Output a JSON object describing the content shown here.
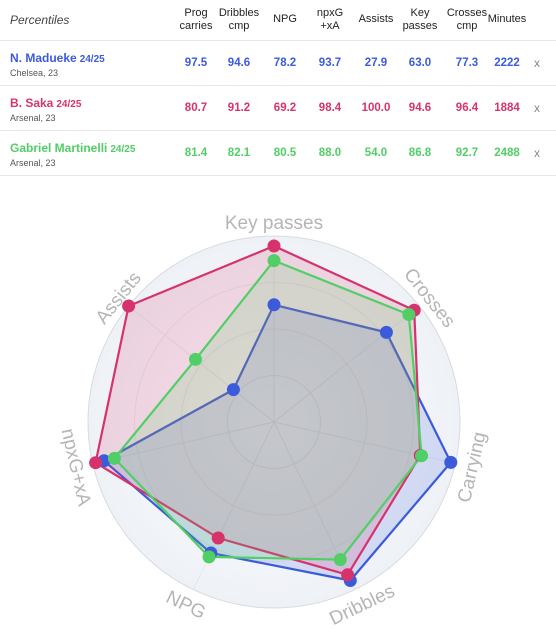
{
  "table": {
    "header_label": "Percentiles",
    "columns": [
      {
        "line1": "Prog",
        "line2": "carries"
      },
      {
        "line1": "Dribbles",
        "line2": "cmp"
      },
      {
        "line1": "NPG",
        "line2": ""
      },
      {
        "line1": "npxG",
        "line2": "+xA"
      },
      {
        "line1": "Assists",
        "line2": ""
      },
      {
        "line1": "Key",
        "line2": "passes"
      },
      {
        "line1": "Crosses",
        "line2": "cmp"
      },
      {
        "line1": "Minutes",
        "line2": ""
      }
    ],
    "remove_label": "x",
    "players": [
      {
        "name": "N. Madueke",
        "season": "24/25",
        "team": "Chelsea, 23",
        "color": "#3b5bdb",
        "values": [
          "97.5",
          "94.6",
          "78.2",
          "93.7",
          "27.9",
          "63.0",
          "77.3",
          "2222"
        ]
      },
      {
        "name": "B. Saka",
        "season": "24/25",
        "team": "Arsenal, 23",
        "color": "#d6336c",
        "values": [
          "80.7",
          "91.2",
          "69.2",
          "98.4",
          "100.0",
          "94.6",
          "96.4",
          "1884"
        ]
      },
      {
        "name": "Gabriel Martinelli",
        "season": "24/25",
        "team": "Arsenal, 23",
        "color": "#51cf66",
        "values": [
          "81.4",
          "82.1",
          "80.5",
          "88.0",
          "54.0",
          "86.8",
          "92.7",
          "2488"
        ]
      }
    ]
  },
  "chart_data": {
    "type": "radar",
    "axes": [
      "Key passes",
      "Crosses",
      "Carrying",
      "Dribbles",
      "NPG",
      "npxG+xA",
      "Assists"
    ],
    "range": [
      0,
      100
    ],
    "series": [
      {
        "name": "N. Madueke",
        "color": "#3b5bdb",
        "values": [
          63.0,
          77.3,
          97.5,
          94.6,
          78.2,
          93.7,
          27.9
        ]
      },
      {
        "name": "B. Saka",
        "color": "#d6336c",
        "values": [
          94.6,
          96.4,
          80.7,
          91.2,
          69.2,
          98.4,
          100.0
        ]
      },
      {
        "name": "Gabriel Martinelli",
        "color": "#51cf66",
        "values": [
          86.8,
          92.7,
          81.4,
          82.1,
          80.5,
          88.0,
          54.0
        ]
      }
    ]
  }
}
